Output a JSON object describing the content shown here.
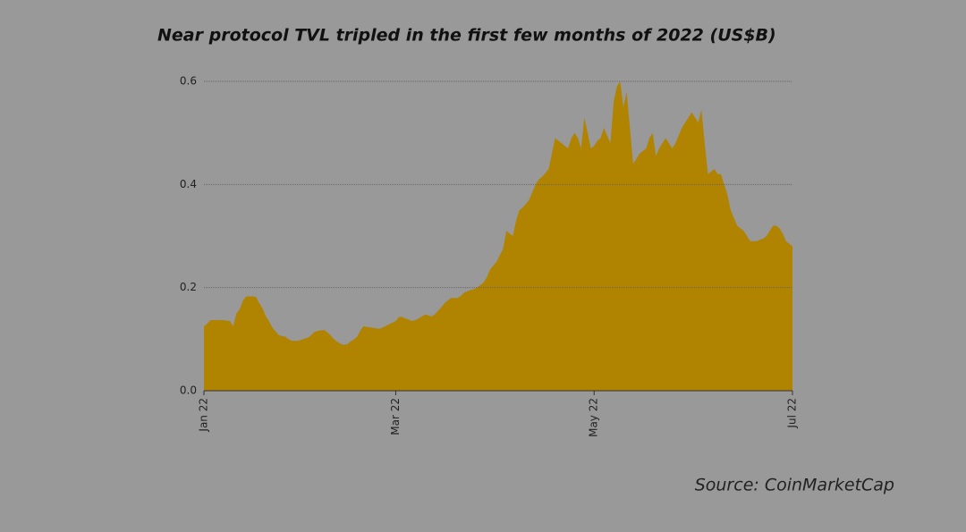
{
  "chart_data": {
    "type": "area",
    "title": "Near protocol TVL tripled in the first few months of 2022 (US$B)",
    "source": "Source: CoinMarketCap",
    "color": "#b08300",
    "grid": true,
    "ylim": [
      0,
      0.6
    ],
    "yticks": [
      {
        "value": 0,
        "label": "0.0"
      },
      0.2,
      0.4,
      0.6
    ],
    "categories": [
      "Jan 22",
      null,
      null,
      null,
      null,
      null,
      null,
      null,
      null,
      null,
      null,
      null,
      null,
      null,
      null,
      null,
      null,
      null,
      null,
      null,
      null,
      null,
      null,
      null,
      null,
      null,
      null,
      null,
      null,
      null,
      null,
      null,
      null,
      null,
      null,
      null,
      null,
      null,
      null,
      null,
      null,
      null,
      null,
      null,
      null,
      null,
      null,
      null,
      null,
      null,
      null,
      null,
      null,
      null,
      null,
      null,
      null,
      null,
      null,
      "Mar 22",
      null,
      null,
      null,
      null,
      null,
      null,
      null,
      null,
      null,
      null,
      null,
      null,
      null,
      null,
      null,
      null,
      null,
      null,
      null,
      null,
      null,
      null,
      null,
      null,
      null,
      null,
      null,
      null,
      null,
      null,
      null,
      null,
      null,
      null,
      null,
      null,
      null,
      null,
      null,
      null,
      null,
      null,
      null,
      null,
      null,
      null,
      null,
      null,
      null,
      null,
      null,
      null,
      null,
      null,
      null,
      null,
      null,
      null,
      null,
      null,
      "May 22",
      null,
      null,
      null,
      null,
      null,
      null,
      null,
      null,
      null,
      null,
      null,
      null,
      null,
      null,
      null,
      null,
      null,
      null,
      null,
      null,
      null,
      null,
      null,
      null,
      null,
      null,
      null,
      null,
      null,
      null,
      null,
      null,
      null,
      null,
      null,
      null,
      null,
      null,
      null,
      null,
      null,
      null,
      null,
      null,
      null,
      null,
      null,
      null,
      null,
      null,
      null,
      null,
      null,
      null,
      null,
      null,
      null,
      null,
      null,
      null,
      "Jul 22"
    ],
    "values": [
      0.125,
      0.13,
      0.137,
      0.137,
      0.137,
      0.137,
      0.137,
      0.136,
      0.135,
      0.125,
      0.15,
      0.158,
      0.175,
      0.183,
      0.183,
      0.183,
      0.182,
      0.17,
      0.16,
      0.145,
      0.135,
      0.123,
      0.115,
      0.108,
      0.106,
      0.105,
      0.1,
      0.097,
      0.097,
      0.097,
      0.099,
      0.101,
      0.103,
      0.108,
      0.114,
      0.116,
      0.117,
      0.118,
      0.113,
      0.107,
      0.1,
      0.095,
      0.091,
      0.089,
      0.09,
      0.095,
      0.099,
      0.104,
      0.115,
      0.125,
      0.124,
      0.123,
      0.122,
      0.121,
      0.12,
      0.123,
      0.126,
      0.129,
      0.132,
      0.135,
      0.143,
      0.143,
      0.14,
      0.138,
      0.135,
      0.137,
      0.14,
      0.144,
      0.148,
      0.146,
      0.144,
      0.148,
      0.155,
      0.162,
      0.17,
      0.175,
      0.18,
      0.18,
      0.18,
      0.184,
      0.19,
      0.193,
      0.195,
      0.197,
      0.2,
      0.205,
      0.21,
      0.22,
      0.235,
      0.243,
      0.25,
      0.263,
      0.275,
      0.31,
      0.305,
      0.3,
      0.33,
      0.35,
      0.355,
      0.362,
      0.37,
      0.385,
      0.4,
      0.41,
      0.415,
      0.422,
      0.43,
      0.46,
      0.49,
      0.485,
      0.48,
      0.475,
      0.47,
      0.49,
      0.5,
      0.49,
      0.47,
      0.53,
      0.5,
      0.47,
      0.475,
      0.485,
      0.49,
      0.51,
      0.495,
      0.48,
      0.56,
      0.59,
      0.6,
      0.55,
      0.58,
      0.51,
      0.44,
      0.45,
      0.46,
      0.465,
      0.47,
      0.49,
      0.5,
      0.455,
      0.47,
      0.48,
      0.49,
      0.48,
      0.47,
      0.48,
      0.495,
      0.51,
      0.52,
      0.53,
      0.54,
      0.53,
      0.52,
      0.545,
      0.48,
      0.42,
      0.425,
      0.43,
      0.42,
      0.42,
      0.4,
      0.38,
      0.35,
      0.335,
      0.32,
      0.315,
      0.31,
      0.3,
      0.29,
      0.29,
      0.29,
      0.293,
      0.295,
      0.3,
      0.31,
      0.32,
      0.32,
      0.315,
      0.305,
      0.29,
      0.285,
      0.28
    ]
  }
}
